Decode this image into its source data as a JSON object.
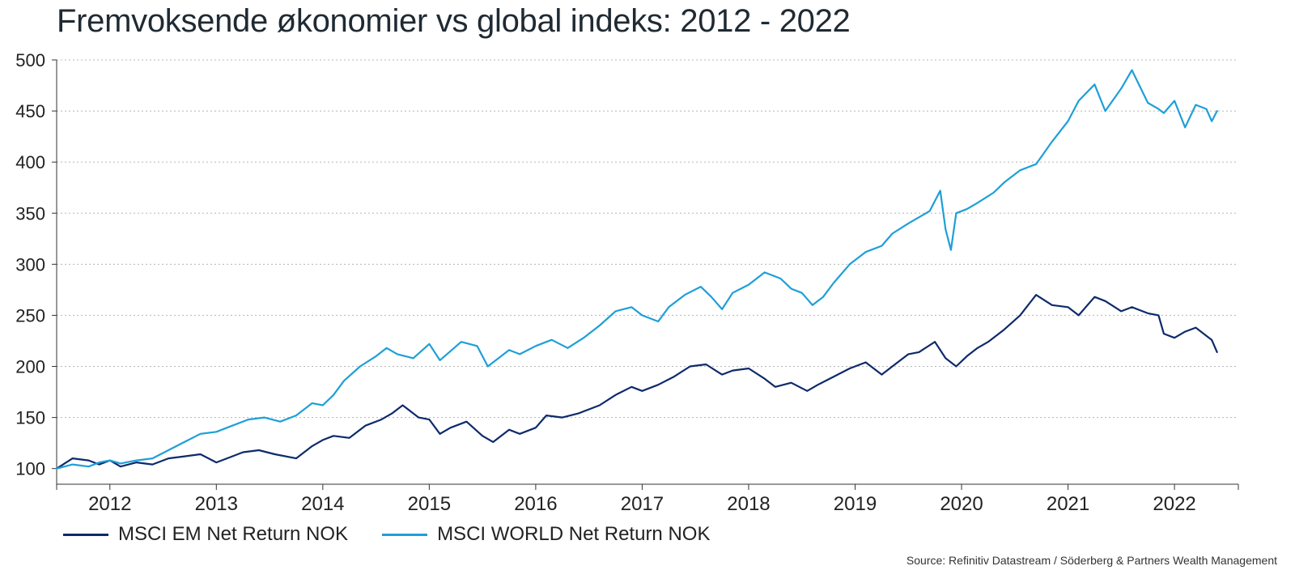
{
  "chart_data": {
    "type": "line",
    "title": "Fremvoksende økonomier vs global indeks: 2012 - 2022",
    "source": "Source: Refinitiv Datastream / Söderberg & Partners Wealth Management",
    "x_tick_labels": [
      "2012",
      "2013",
      "2014",
      "2015",
      "2016",
      "2017",
      "2018",
      "2019",
      "2020",
      "2021",
      "2022"
    ],
    "x_range": [
      2011.5,
      2022.6
    ],
    "ylim": [
      95,
      500
    ],
    "y_ticks": [
      100,
      150,
      200,
      250,
      300,
      350,
      400,
      450,
      500
    ],
    "grid": "horizontal-dotted",
    "legend_position": "bottom-left",
    "series": [
      {
        "name": "MSCI EM Net Return NOK",
        "color": "#0d2a6b",
        "x": [
          2011.5,
          2011.65,
          2011.8,
          2011.9,
          2012.0,
          2012.1,
          2012.25,
          2012.4,
          2012.55,
          2012.7,
          2012.85,
          2013.0,
          2013.15,
          2013.25,
          2013.4,
          2013.55,
          2013.75,
          2013.9,
          2014.0,
          2014.1,
          2014.25,
          2014.4,
          2014.55,
          2014.65,
          2014.75,
          2014.9,
          2015.0,
          2015.1,
          2015.2,
          2015.35,
          2015.5,
          2015.6,
          2015.75,
          2015.85,
          2016.0,
          2016.1,
          2016.25,
          2016.4,
          2016.6,
          2016.75,
          2016.9,
          2017.0,
          2017.15,
          2017.3,
          2017.45,
          2017.6,
          2017.75,
          2017.85,
          2018.0,
          2018.15,
          2018.25,
          2018.4,
          2018.55,
          2018.65,
          2018.8,
          2018.95,
          2019.1,
          2019.25,
          2019.35,
          2019.5,
          2019.6,
          2019.75,
          2019.85,
          2019.95,
          2020.05,
          2020.15,
          2020.25,
          2020.4,
          2020.55,
          2020.7,
          2020.85,
          2021.0,
          2021.1,
          2021.25,
          2021.35,
          2021.5,
          2021.6,
          2021.75,
          2021.85,
          2021.9,
          2022.0,
          2022.1,
          2022.2,
          2022.3,
          2022.35,
          2022.4
        ],
        "values": [
          100,
          110,
          108,
          104,
          108,
          102,
          106,
          104,
          110,
          112,
          114,
          106,
          112,
          116,
          118,
          114,
          110,
          122,
          128,
          132,
          130,
          142,
          148,
          154,
          162,
          150,
          148,
          134,
          140,
          146,
          132,
          126,
          138,
          134,
          140,
          152,
          150,
          154,
          162,
          172,
          180,
          176,
          182,
          190,
          200,
          202,
          192,
          196,
          198,
          188,
          180,
          184,
          176,
          182,
          190,
          198,
          204,
          192,
          200,
          212,
          214,
          224,
          208,
          200,
          210,
          218,
          224,
          236,
          250,
          270,
          260,
          258,
          250,
          268,
          264,
          254,
          258,
          252,
          250,
          232,
          228,
          234,
          238,
          230,
          226,
          214
        ]
      },
      {
        "name": "MSCI WORLD Net Return NOK",
        "color": "#1e9fd8",
        "x": [
          2011.5,
          2011.65,
          2011.8,
          2011.9,
          2012.0,
          2012.1,
          2012.25,
          2012.4,
          2012.55,
          2012.7,
          2012.85,
          2013.0,
          2013.15,
          2013.3,
          2013.45,
          2013.6,
          2013.75,
          2013.9,
          2014.0,
          2014.1,
          2014.2,
          2014.35,
          2014.5,
          2014.6,
          2014.7,
          2014.85,
          2015.0,
          2015.1,
          2015.2,
          2015.3,
          2015.45,
          2015.55,
          2015.65,
          2015.75,
          2015.85,
          2016.0,
          2016.15,
          2016.3,
          2016.45,
          2016.6,
          2016.75,
          2016.9,
          2017.0,
          2017.15,
          2017.25,
          2017.4,
          2017.55,
          2017.65,
          2017.75,
          2017.85,
          2018.0,
          2018.15,
          2018.3,
          2018.4,
          2018.5,
          2018.6,
          2018.7,
          2018.8,
          2018.95,
          2019.1,
          2019.25,
          2019.35,
          2019.5,
          2019.6,
          2019.7,
          2019.8,
          2019.85,
          2019.9,
          2019.95,
          2020.05,
          2020.15,
          2020.3,
          2020.4,
          2020.55,
          2020.7,
          2020.85,
          2021.0,
          2021.1,
          2021.25,
          2021.35,
          2021.5,
          2021.6,
          2021.75,
          2021.85,
          2021.9,
          2022.0,
          2022.1,
          2022.2,
          2022.3,
          2022.35,
          2022.4
        ],
        "values": [
          100,
          104,
          102,
          106,
          108,
          105,
          108,
          110,
          118,
          126,
          134,
          136,
          142,
          148,
          150,
          146,
          152,
          164,
          162,
          172,
          186,
          200,
          210,
          218,
          212,
          208,
          222,
          206,
          215,
          224,
          220,
          200,
          208,
          216,
          212,
          220,
          226,
          218,
          228,
          240,
          254,
          258,
          250,
          244,
          258,
          270,
          278,
          268,
          256,
          272,
          280,
          292,
          286,
          276,
          272,
          260,
          268,
          282,
          300,
          312,
          318,
          330,
          340,
          346,
          352,
          372,
          334,
          314,
          350,
          354,
          360,
          370,
          380,
          392,
          398,
          420,
          440,
          460,
          476,
          450,
          472,
          490,
          458,
          452,
          448,
          460,
          434,
          456,
          452,
          440,
          450
        ]
      }
    ]
  }
}
